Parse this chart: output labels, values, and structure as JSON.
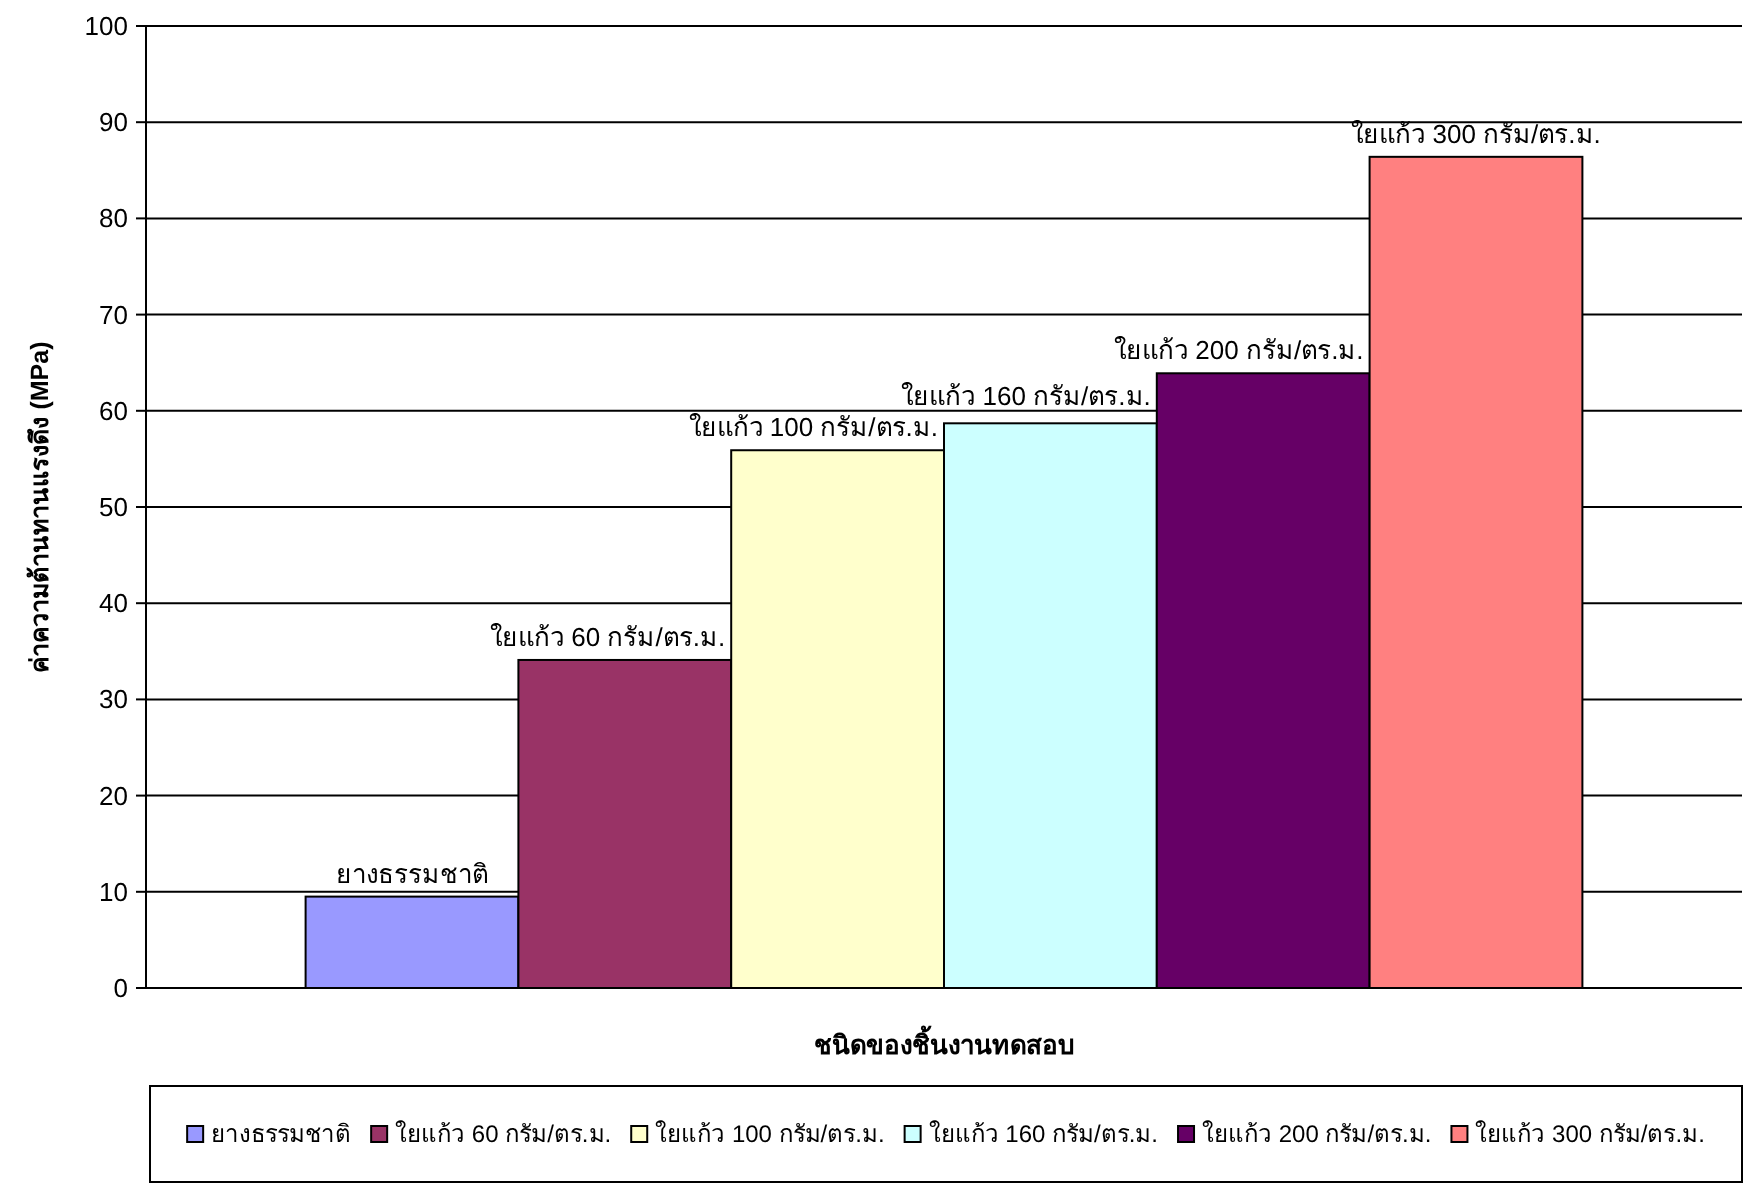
{
  "chart_data": {
    "type": "bar",
    "categories": [
      null
    ],
    "xlabel": "ชนิดของชิ้นงานทดสอบ",
    "ylabel": "ค่าความต้านทานแรงดึง (MPa)",
    "ylim": [
      0,
      100
    ],
    "yticks": [
      0,
      10,
      20,
      30,
      40,
      50,
      60,
      70,
      80,
      90,
      100
    ],
    "grid": "y",
    "legend": "bottom",
    "series": [
      {
        "name": "ยางธรรมชาติ",
        "color": "#9999ff",
        "values": [
          9.5
        ]
      },
      {
        "name": "ใยแก้ว 60 กรัม/ตร.ม.",
        "color": "#993366",
        "values": [
          34.1
        ]
      },
      {
        "name": "ใยแก้ว 100 กรัม/ตร.ม.",
        "color": "#ffffcc",
        "values": [
          55.9
        ]
      },
      {
        "name": "ใยแก้ว 160 กรัม/ตร.ม.",
        "color": "#ccffff",
        "values": [
          58.7
        ]
      },
      {
        "name": "ใยแก้ว 200 กรัม/ตร.ม.",
        "color": "#660066",
        "values": [
          63.9
        ]
      },
      {
        "name": "ใยแก้ว 300 กรัม/ตร.ม.",
        "color": "#ff8080",
        "values": [
          86.4
        ]
      }
    ]
  }
}
